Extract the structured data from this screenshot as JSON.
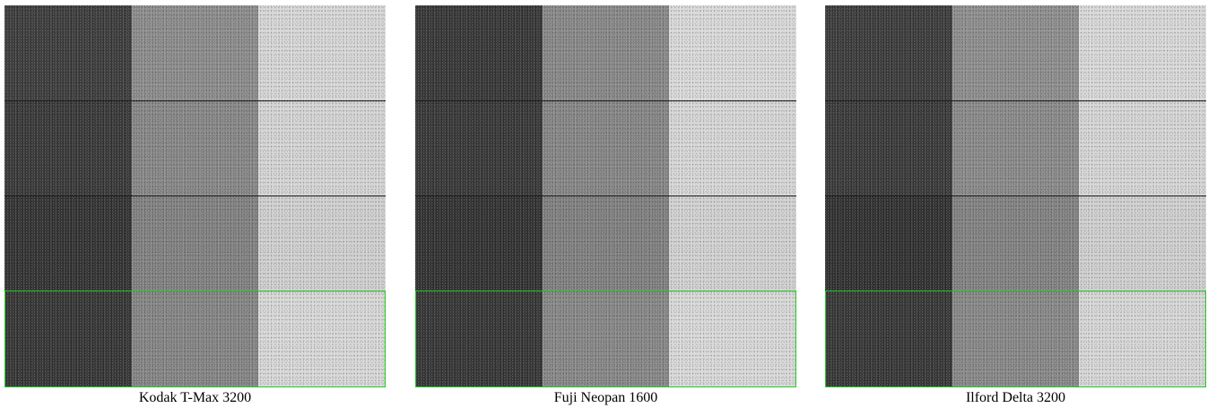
{
  "panels": [
    {
      "caption": "Kodak T-Max 3200",
      "patch_colors": [
        [
          "#3a3a3a",
          "#8a8a8a",
          "#d6d6d6"
        ],
        [
          "#363636",
          "#858585",
          "#d4d4d4"
        ],
        [
          "#303030",
          "#7f7f7f",
          "#cfcfcf"
        ],
        [
          "#333333",
          "#838383",
          "#d7d7d7"
        ]
      ]
    },
    {
      "caption": "Fuji Neopan 1600",
      "patch_colors": [
        [
          "#343434",
          "#868686",
          "#d9d9d9"
        ],
        [
          "#353535",
          "#848484",
          "#d6d6d6"
        ],
        [
          "#2f2f2f",
          "#7e7e7e",
          "#d1d1d1"
        ],
        [
          "#333333",
          "#858585",
          "#d8d8d8"
        ]
      ]
    },
    {
      "caption": "Ilford Delta 3200",
      "patch_colors": [
        [
          "#393939",
          "#8c8c8c",
          "#d8d8d8"
        ],
        [
          "#373737",
          "#888888",
          "#d5d5d5"
        ],
        [
          "#2e2e2e",
          "#808080",
          "#cfcfcf"
        ],
        [
          "#343434",
          "#868686",
          "#d6d6d6"
        ]
      ]
    }
  ],
  "highlight_color": "#22cc22",
  "separator_color": "#1a1a1a"
}
